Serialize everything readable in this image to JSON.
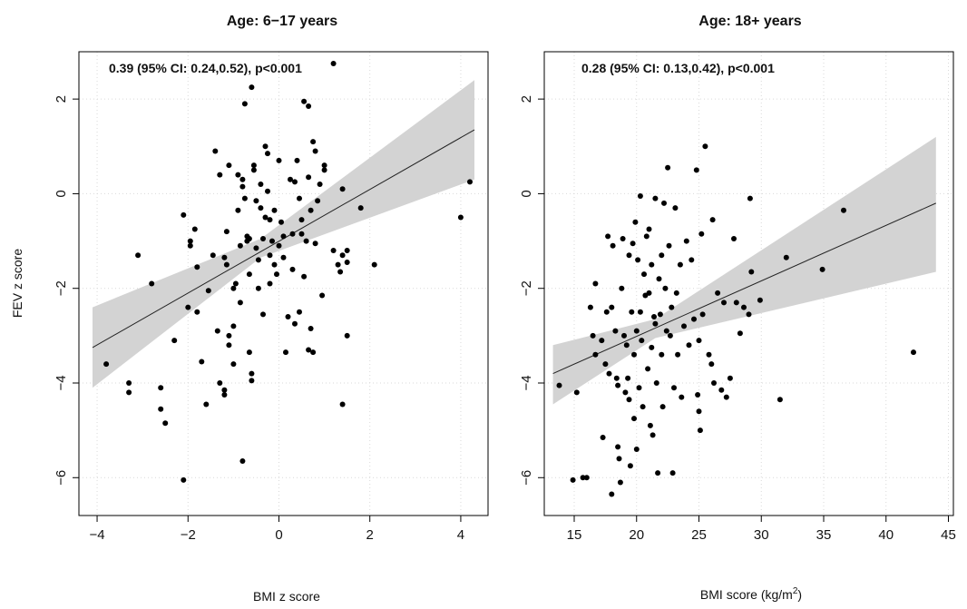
{
  "figure": {
    "ylabel_shared": "FEV z score"
  },
  "chart_data": [
    {
      "type": "scatter",
      "title": "Age: 6−17 years",
      "annotation": "0.39 (95% CI: 0.24,0.52), p<0.001",
      "xlabel": "BMI z score",
      "ylabel": "FEV z score",
      "xlim": [
        -4.4,
        4.6
      ],
      "ylim": [
        -6.8,
        3.0
      ],
      "xticks": [
        -4,
        -2,
        0,
        2,
        4
      ],
      "xtick_labels": [
        "−4",
        "−2",
        "0",
        "2",
        "4"
      ],
      "yticks": [
        -6,
        -4,
        -2,
        0,
        2
      ],
      "ytick_labels": [
        "−6",
        "−4",
        "−2",
        "0",
        "2"
      ],
      "grid": true,
      "regression": {
        "x_range": [
          -4.1,
          4.3
        ],
        "y_at_start": -3.25,
        "y_at_end": 1.35,
        "ci_lower": [
          [
            -4.1,
            -4.1
          ],
          [
            -0.4,
            -1.35
          ],
          [
            4.3,
            0.3
          ]
        ],
        "ci_upper": [
          [
            -4.1,
            -2.4
          ],
          [
            -0.4,
            -0.95
          ],
          [
            4.3,
            2.4
          ]
        ]
      },
      "points": [
        [
          -3.8,
          -3.6
        ],
        [
          -3.3,
          -4.0
        ],
        [
          -3.3,
          -4.2
        ],
        [
          -2.6,
          -4.1
        ],
        [
          -2.6,
          -4.55
        ],
        [
          -2.5,
          -4.85
        ],
        [
          -2.8,
          -1.9
        ],
        [
          -3.1,
          -1.3
        ],
        [
          -2.3,
          -3.1
        ],
        [
          -2.1,
          -6.05
        ],
        [
          -2.1,
          -0.45
        ],
        [
          -2.0,
          -2.4
        ],
        [
          -1.95,
          -1.0
        ],
        [
          -1.95,
          -1.1
        ],
        [
          -1.85,
          -0.75
        ],
        [
          -1.8,
          -1.55
        ],
        [
          -1.8,
          -2.5
        ],
        [
          -1.7,
          -3.55
        ],
        [
          -1.6,
          -4.45
        ],
        [
          -1.55,
          -2.05
        ],
        [
          -1.45,
          -1.3
        ],
        [
          -1.4,
          0.9
        ],
        [
          -1.35,
          -2.9
        ],
        [
          -1.3,
          -4.0
        ],
        [
          -1.3,
          0.4
        ],
        [
          -1.2,
          -4.15
        ],
        [
          -1.2,
          -4.25
        ],
        [
          -1.2,
          -1.35
        ],
        [
          -1.15,
          -0.8
        ],
        [
          -1.15,
          -1.5
        ],
        [
          -1.1,
          0.6
        ],
        [
          -1.1,
          -3.0
        ],
        [
          -1.1,
          -3.2
        ],
        [
          -1.0,
          -3.6
        ],
        [
          -1.0,
          -2.8
        ],
        [
          -1.0,
          -2.0
        ],
        [
          -0.95,
          -1.9
        ],
        [
          -0.9,
          0.4
        ],
        [
          -0.9,
          -0.35
        ],
        [
          -0.85,
          -1.1
        ],
        [
          -0.85,
          -2.3
        ],
        [
          -0.8,
          0.3
        ],
        [
          -0.8,
          0.15
        ],
        [
          -0.8,
          -5.65
        ],
        [
          -0.75,
          1.9
        ],
        [
          -0.75,
          -0.1
        ],
        [
          -0.7,
          -0.9
        ],
        [
          -0.7,
          -1.0
        ],
        [
          -0.65,
          -0.95
        ],
        [
          -0.65,
          -1.7
        ],
        [
          -0.65,
          -3.35
        ],
        [
          -0.6,
          2.25
        ],
        [
          -0.6,
          -3.8
        ],
        [
          -0.6,
          -3.95
        ],
        [
          -0.55,
          0.5
        ],
        [
          -0.55,
          0.6
        ],
        [
          -0.5,
          -0.15
        ],
        [
          -0.5,
          -1.15
        ],
        [
          -0.45,
          -1.4
        ],
        [
          -0.45,
          -2.0
        ],
        [
          -0.4,
          0.2
        ],
        [
          -0.4,
          -0.3
        ],
        [
          -0.35,
          -0.95
        ],
        [
          -0.35,
          -2.55
        ],
        [
          -0.3,
          1.0
        ],
        [
          -0.3,
          -0.5
        ],
        [
          -0.25,
          0.85
        ],
        [
          -0.25,
          0.05
        ],
        [
          -0.2,
          -0.55
        ],
        [
          -0.2,
          -1.3
        ],
        [
          -0.2,
          -1.9
        ],
        [
          -0.15,
          -1.0
        ],
        [
          -0.1,
          -0.35
        ],
        [
          -0.1,
          -1.5
        ],
        [
          -0.05,
          -1.7
        ],
        [
          0.0,
          0.7
        ],
        [
          0.0,
          -1.1
        ],
        [
          0.05,
          -0.6
        ],
        [
          0.1,
          -0.9
        ],
        [
          0.1,
          -1.35
        ],
        [
          0.15,
          -3.35
        ],
        [
          0.2,
          -2.6
        ],
        [
          0.25,
          0.3
        ],
        [
          0.3,
          -0.85
        ],
        [
          0.3,
          -1.6
        ],
        [
          0.35,
          0.25
        ],
        [
          0.35,
          -2.75
        ],
        [
          0.4,
          0.7
        ],
        [
          0.45,
          -2.5
        ],
        [
          0.45,
          -0.1
        ],
        [
          0.5,
          -0.55
        ],
        [
          0.5,
          -0.85
        ],
        [
          0.55,
          1.95
        ],
        [
          0.55,
          -1.75
        ],
        [
          0.6,
          -1.0
        ],
        [
          0.65,
          1.85
        ],
        [
          0.65,
          0.35
        ],
        [
          0.65,
          -3.3
        ],
        [
          0.7,
          -0.35
        ],
        [
          0.7,
          -2.85
        ],
        [
          0.75,
          1.1
        ],
        [
          0.75,
          -3.35
        ],
        [
          0.8,
          0.9
        ],
        [
          0.8,
          -1.05
        ],
        [
          0.85,
          -0.15
        ],
        [
          0.9,
          0.2
        ],
        [
          0.95,
          -2.15
        ],
        [
          1.0,
          0.6
        ],
        [
          1.0,
          0.5
        ],
        [
          1.2,
          2.75
        ],
        [
          1.2,
          -1.2
        ],
        [
          1.3,
          -1.5
        ],
        [
          1.35,
          -1.65
        ],
        [
          1.4,
          0.1
        ],
        [
          1.4,
          -1.3
        ],
        [
          1.4,
          -4.45
        ],
        [
          1.5,
          -1.2
        ],
        [
          1.5,
          -1.45
        ],
        [
          1.5,
          -3.0
        ],
        [
          1.8,
          -0.3
        ],
        [
          2.1,
          -1.5
        ],
        [
          4.0,
          -0.5
        ],
        [
          4.2,
          0.25
        ]
      ]
    },
    {
      "type": "scatter",
      "title": "Age: 18+ years",
      "annotation": "0.28 (95% CI: 0.13,0.42), p<0.001",
      "xlabel": "BMI score (kg/m",
      "xlabel_sup": "2",
      "xlabel_tail": ")",
      "xlim": [
        12.6,
        45.4
      ],
      "ylim": [
        -6.8,
        3.0
      ],
      "xticks": [
        15,
        20,
        25,
        30,
        35,
        40,
        45
      ],
      "xtick_labels": [
        "15",
        "20",
        "25",
        "30",
        "35",
        "40",
        "45"
      ],
      "yticks": [
        -6,
        -4,
        -2,
        0,
        2
      ],
      "ytick_labels": [
        "−6",
        "−4",
        "−2",
        "0",
        "2"
      ],
      "grid": true,
      "regression": {
        "x_range": [
          13.3,
          44.0
        ],
        "y_at_start": -3.8,
        "y_at_end": -0.2,
        "ci_lower": [
          [
            13.3,
            -4.45
          ],
          [
            21.5,
            -3.05
          ],
          [
            44.0,
            -1.65
          ]
        ],
        "ci_upper": [
          [
            13.3,
            -3.2
          ],
          [
            21.5,
            -2.65
          ],
          [
            44.0,
            1.2
          ]
        ]
      },
      "points": [
        [
          13.8,
          -4.05
        ],
        [
          14.9,
          -6.05
        ],
        [
          15.2,
          -4.2
        ],
        [
          15.7,
          -6.0
        ],
        [
          16.0,
          -6.0
        ],
        [
          16.3,
          -2.4
        ],
        [
          16.5,
          -3.0
        ],
        [
          16.7,
          -3.4
        ],
        [
          16.7,
          -1.9
        ],
        [
          17.2,
          -3.1
        ],
        [
          17.3,
          -5.15
        ],
        [
          17.5,
          -3.6
        ],
        [
          17.6,
          -2.5
        ],
        [
          17.7,
          -0.9
        ],
        [
          17.8,
          -3.8
        ],
        [
          18.0,
          -6.35
        ],
        [
          18.0,
          -2.4
        ],
        [
          18.1,
          -1.1
        ],
        [
          18.3,
          -2.9
        ],
        [
          18.4,
          -3.9
        ],
        [
          18.5,
          -4.05
        ],
        [
          18.5,
          -5.35
        ],
        [
          18.6,
          -5.6
        ],
        [
          18.7,
          -6.1
        ],
        [
          18.8,
          -2.0
        ],
        [
          18.9,
          -0.95
        ],
        [
          19.0,
          -3.0
        ],
        [
          19.1,
          -4.2
        ],
        [
          19.2,
          -3.2
        ],
        [
          19.3,
          -3.9
        ],
        [
          19.4,
          -1.3
        ],
        [
          19.4,
          -4.35
        ],
        [
          19.5,
          -5.75
        ],
        [
          19.6,
          -2.5
        ],
        [
          19.7,
          -1.05
        ],
        [
          19.8,
          -3.4
        ],
        [
          19.8,
          -4.75
        ],
        [
          19.9,
          -0.6
        ],
        [
          20.0,
          -2.9
        ],
        [
          20.0,
          -5.4
        ],
        [
          20.1,
          -1.4
        ],
        [
          20.2,
          -4.1
        ],
        [
          20.3,
          -0.05
        ],
        [
          20.3,
          -2.5
        ],
        [
          20.4,
          -3.1
        ],
        [
          20.5,
          -4.5
        ],
        [
          20.6,
          -1.7
        ],
        [
          20.7,
          -2.15
        ],
        [
          20.8,
          -0.9
        ],
        [
          20.9,
          -3.7
        ],
        [
          21.0,
          -0.75
        ],
        [
          21.0,
          -2.1
        ],
        [
          21.1,
          -4.9
        ],
        [
          21.2,
          -1.5
        ],
        [
          21.2,
          -3.25
        ],
        [
          21.3,
          -5.1
        ],
        [
          21.4,
          -2.6
        ],
        [
          21.5,
          -0.1
        ],
        [
          21.5,
          -2.75
        ],
        [
          21.6,
          -4.0
        ],
        [
          21.7,
          -5.9
        ],
        [
          21.8,
          -1.8
        ],
        [
          21.9,
          -2.55
        ],
        [
          22.0,
          -1.3
        ],
        [
          22.0,
          -3.4
        ],
        [
          22.1,
          -4.5
        ],
        [
          22.2,
          -0.2
        ],
        [
          22.3,
          -2.0
        ],
        [
          22.4,
          -2.9
        ],
        [
          22.5,
          0.55
        ],
        [
          22.6,
          -1.1
        ],
        [
          22.7,
          -3.0
        ],
        [
          22.8,
          -2.4
        ],
        [
          22.9,
          -5.9
        ],
        [
          23.0,
          -4.1
        ],
        [
          23.1,
          -0.3
        ],
        [
          23.2,
          -2.1
        ],
        [
          23.3,
          -3.4
        ],
        [
          23.5,
          -1.5
        ],
        [
          23.6,
          -4.3
        ],
        [
          23.8,
          -2.8
        ],
        [
          24.0,
          -1.0
        ],
        [
          24.2,
          -3.2
        ],
        [
          24.4,
          -1.4
        ],
        [
          24.6,
          -2.65
        ],
        [
          24.8,
          0.5
        ],
        [
          24.9,
          -4.25
        ],
        [
          25.0,
          -4.6
        ],
        [
          25.0,
          -3.1
        ],
        [
          25.1,
          -5.0
        ],
        [
          25.2,
          -0.85
        ],
        [
          25.3,
          -2.55
        ],
        [
          25.5,
          1.0
        ],
        [
          25.8,
          -3.4
        ],
        [
          26.0,
          -3.6
        ],
        [
          26.1,
          -0.55
        ],
        [
          26.2,
          -4.0
        ],
        [
          26.5,
          -2.1
        ],
        [
          26.8,
          -4.15
        ],
        [
          27.0,
          -2.3
        ],
        [
          27.2,
          -4.3
        ],
        [
          27.5,
          -3.9
        ],
        [
          27.8,
          -0.95
        ],
        [
          28.0,
          -2.3
        ],
        [
          28.3,
          -2.95
        ],
        [
          28.6,
          -2.4
        ],
        [
          29.0,
          -2.55
        ],
        [
          29.1,
          -0.1
        ],
        [
          29.2,
          -1.65
        ],
        [
          29.9,
          -2.25
        ],
        [
          31.5,
          -4.35
        ],
        [
          32.0,
          -1.35
        ],
        [
          34.9,
          -1.6
        ],
        [
          36.6,
          -0.35
        ],
        [
          42.2,
          -3.35
        ]
      ]
    }
  ]
}
